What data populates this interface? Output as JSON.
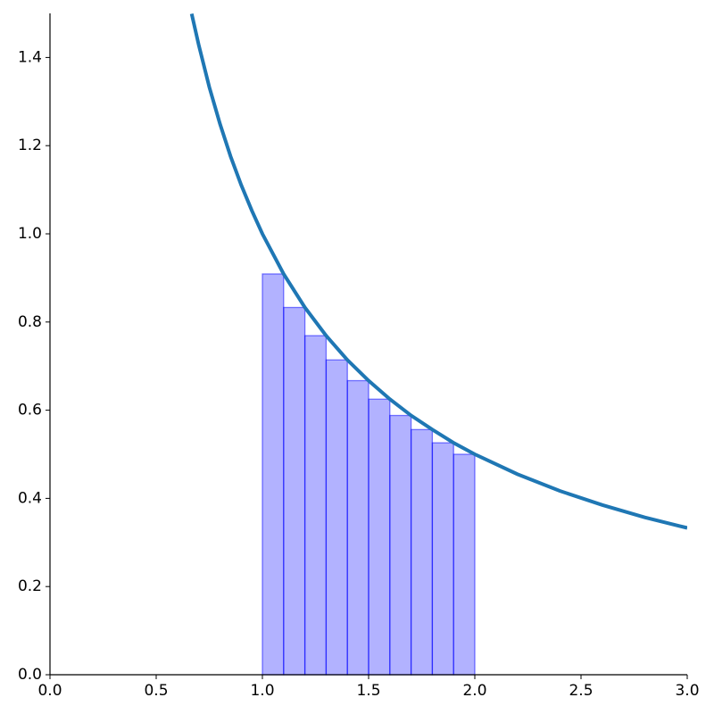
{
  "chart_data": {
    "type": "line",
    "xlim": [
      0,
      3
    ],
    "ylim": [
      0,
      1.5
    ],
    "xticks": [
      {
        "value": 0,
        "label": "0.0"
      },
      {
        "value": 0.5,
        "label": "0.5"
      },
      {
        "value": 1,
        "label": "1.0"
      },
      {
        "value": 1.5,
        "label": "1.5"
      },
      {
        "value": 2,
        "label": "2.0"
      },
      {
        "value": 2.5,
        "label": "2.5"
      },
      {
        "value": 3,
        "label": "3.0"
      }
    ],
    "yticks": [
      {
        "value": 0,
        "label": "0.0"
      },
      0.2,
      0.4,
      0.6,
      0.8,
      {
        "value": 1,
        "label": "1.0"
      },
      1.2,
      1.4
    ],
    "series": [
      {
        "type": "line",
        "color": "#1f77b4",
        "x": [
          0.667,
          0.7,
          0.75,
          0.8,
          0.85,
          0.9,
          0.95,
          1.0,
          1.1,
          1.2,
          1.3,
          1.4,
          1.5,
          1.6,
          1.7,
          1.8,
          1.9,
          2.0,
          2.2,
          2.4,
          2.6,
          2.8,
          3.0
        ],
        "values": [
          1.499,
          1.429,
          1.333,
          1.25,
          1.176,
          1.111,
          1.053,
          1.0,
          0.909,
          0.833,
          0.769,
          0.714,
          0.667,
          0.625,
          0.588,
          0.556,
          0.526,
          0.5,
          0.455,
          0.417,
          0.385,
          0.357,
          0.333
        ]
      },
      {
        "type": "bar",
        "color": "#0000ff",
        "bins": [
          1.0,
          1.1,
          1.2,
          1.3,
          1.4,
          1.5,
          1.6,
          1.7,
          1.8,
          1.9,
          2.0
        ],
        "values": [
          0.909,
          0.833,
          0.769,
          0.714,
          0.667,
          0.625,
          0.588,
          0.556,
          0.526,
          0.5
        ]
      }
    ]
  }
}
